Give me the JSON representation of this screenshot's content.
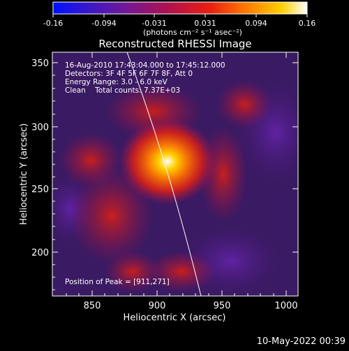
{
  "colorbar": {
    "tick_labels": [
      "-0.16",
      "-0.094",
      "-0.031",
      "0.031",
      "0.094",
      "0.16"
    ],
    "unit_label": "(photons cm⁻² s⁻¹ asec⁻²)",
    "colors": [
      "#0010ff",
      "#3a18c8",
      "#70189a",
      "#b01050",
      "#e82010",
      "#ff7a00",
      "#ffd000",
      "#ffffff"
    ]
  },
  "plot": {
    "title": "Reconstructed RHESSI Image",
    "xlabel": "Heliocentric X (arcsec)",
    "ylabel": "Heliocentric Y (arcsec)",
    "x_ticks": [
      "850",
      "900",
      "950",
      "1000"
    ],
    "y_ticks": [
      "350",
      "300",
      "250",
      "200"
    ],
    "annotations": [
      "16-Aug-2010 17:43:04.000 to 17:45:12.000",
      "Detectors: 3F 4F 5F 6F 7F 8F, Att 0",
      "Energy Range: 3.0 - 6.0 keV",
      "Clean    Total counts: 7.37E+03"
    ],
    "peak_label": "Position of Peak = [911,271]"
  },
  "timestamp": "10-May-2022 00:39"
}
